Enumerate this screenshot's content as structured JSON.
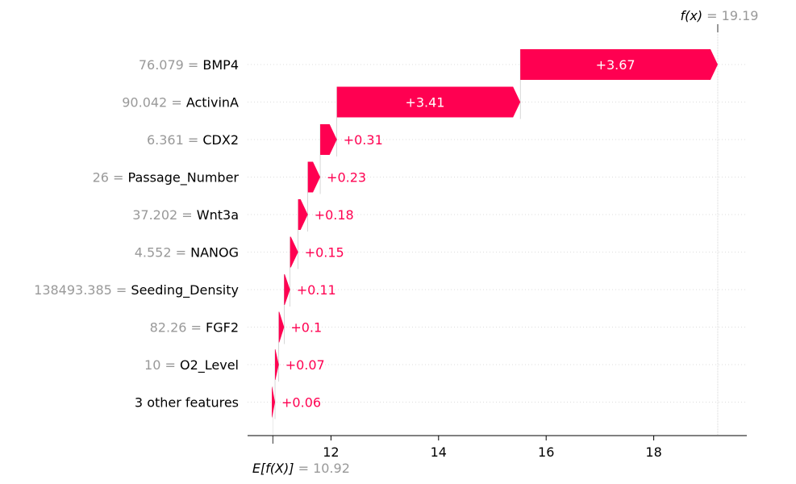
{
  "chart_data": {
    "type": "waterfall",
    "base_value": 10.92,
    "base_value_label": "10.92",
    "output_value": 19.19,
    "output_value_label": "19.19",
    "fx_symbol": "f(x)",
    "ef_symbol": "E[f(X)]",
    "equals_sign": "=",
    "xlim": [
      10.45,
      19.73
    ],
    "x_ticks": [
      12,
      14,
      16,
      18
    ],
    "x_tick_labels": [
      "12",
      "14",
      "16",
      "18"
    ],
    "positive_color": "#ff0051",
    "features": [
      {
        "value": "76.079",
        "name": "BMP4",
        "contribution": 3.67,
        "label": "+3.67"
      },
      {
        "value": "90.042",
        "name": "ActivinA",
        "contribution": 3.41,
        "label": "+3.41"
      },
      {
        "value": "6.361",
        "name": "CDX2",
        "contribution": 0.31,
        "label": "+0.31"
      },
      {
        "value": "26",
        "name": "Passage_Number",
        "contribution": 0.23,
        "label": "+0.23"
      },
      {
        "value": "37.202",
        "name": "Wnt3a",
        "contribution": 0.18,
        "label": "+0.18"
      },
      {
        "value": "4.552",
        "name": "NANOG",
        "contribution": 0.15,
        "label": "+0.15"
      },
      {
        "value": "138493.385",
        "name": "Seeding_Density",
        "contribution": 0.11,
        "label": "+0.11"
      },
      {
        "value": "82.26",
        "name": "FGF2",
        "contribution": 0.1,
        "label": "+0.1"
      },
      {
        "value": "10",
        "name": "O2_Level",
        "contribution": 0.07,
        "label": "+0.07"
      },
      {
        "value": "",
        "name": "3 other features",
        "contribution": 0.06,
        "label": "+0.06"
      }
    ]
  }
}
